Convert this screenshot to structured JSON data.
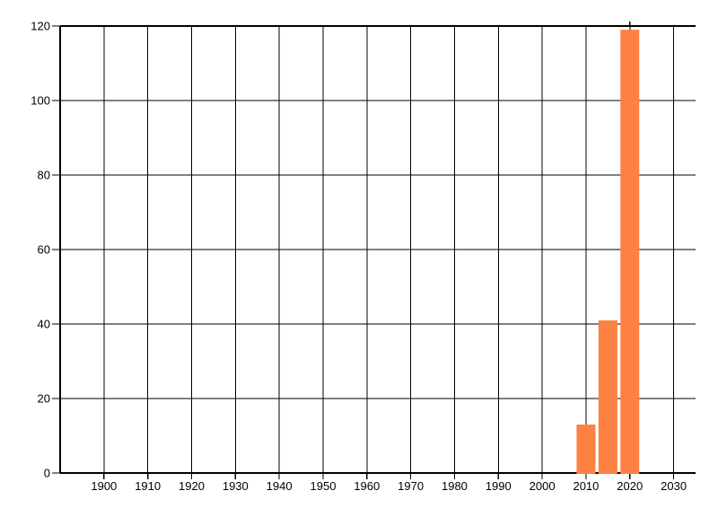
{
  "chart_data": {
    "type": "bar",
    "title": "",
    "xlabel": "",
    "ylabel": "",
    "x": [
      2010,
      2015,
      2020
    ],
    "values": [
      13,
      41,
      119
    ],
    "bar_width_years": 4.3,
    "xlim": [
      1890,
      2035
    ],
    "ylim": [
      0,
      120
    ],
    "x_ticks": [
      1900,
      1910,
      1920,
      1930,
      1940,
      1950,
      1960,
      1970,
      1980,
      1990,
      2000,
      2010,
      2020,
      2030
    ],
    "x_tick_labels": [
      "1900",
      "1910",
      "1920",
      "1930",
      "1940",
      "1950",
      "1960",
      "1970",
      "1980",
      "1990",
      "2000",
      "2010",
      "2020",
      "2030"
    ],
    "y_ticks": [
      0,
      20,
      40,
      60,
      80,
      100,
      120
    ],
    "y_tick_labels": [
      "0",
      "20",
      "40",
      "60",
      "80",
      "100",
      "120"
    ],
    "grid": true,
    "legend": false,
    "extra_top_tick_year": 2020,
    "colors": {
      "bar": "#fc8142",
      "grid": "#000000",
      "axis": "#000000",
      "text": "#000000",
      "background": "#ffffff"
    }
  }
}
